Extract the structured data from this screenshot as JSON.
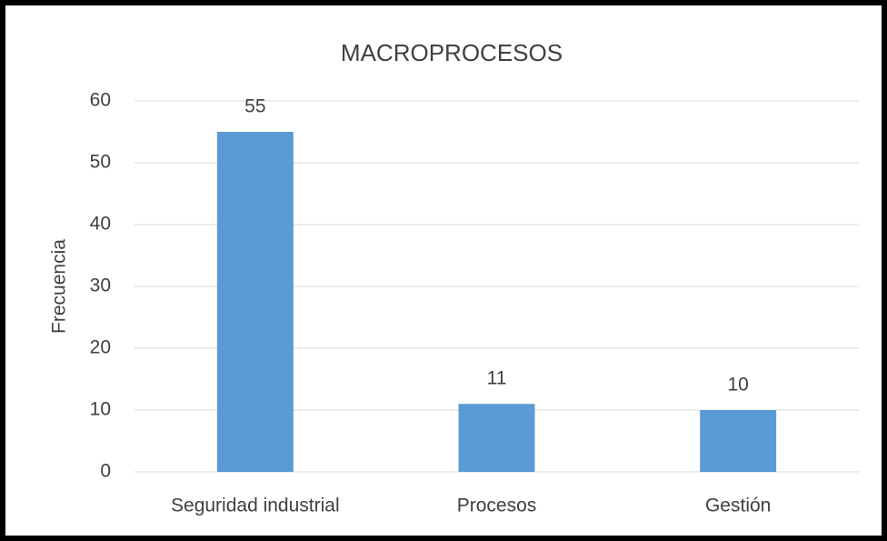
{
  "chart_data": {
    "type": "bar",
    "title": "MACROPROCESOS",
    "y_label": "Frecuencia",
    "categories": [
      "Seguridad industrial",
      "Procesos",
      "Gestión"
    ],
    "values": [
      55,
      11,
      10
    ],
    "color": "#5b9bd5",
    "ylim": [
      0,
      60
    ],
    "yticks": [
      0,
      10,
      20,
      30,
      40,
      50,
      60
    ],
    "grid": true
  }
}
